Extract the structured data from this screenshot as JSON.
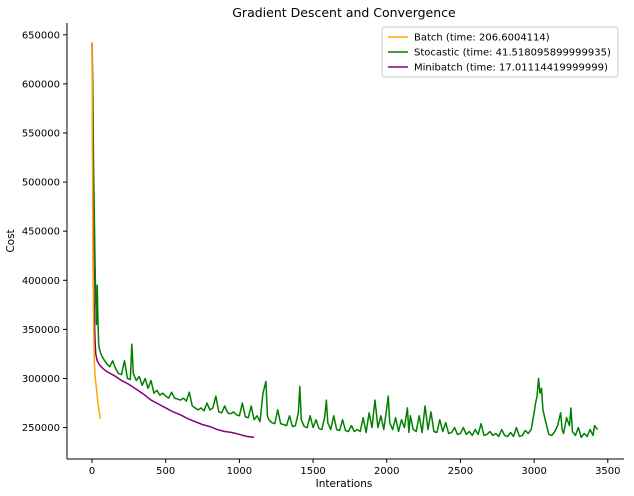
{
  "chart_data": {
    "type": "line",
    "title": "Gradient Descent and Convergence",
    "xlabel": "Interations",
    "ylabel": "Cost",
    "xlim": [
      -170,
      3610
    ],
    "ylim": [
      218000,
      662000
    ],
    "xticks": [
      0,
      500,
      1000,
      1500,
      2000,
      2500,
      3000,
      3500
    ],
    "yticks": [
      250000,
      300000,
      350000,
      400000,
      450000,
      500000,
      550000,
      600000,
      650000
    ],
    "grid": false,
    "legend_position": "top-right",
    "series": [
      {
        "name": "Batch (time: 206.6004114)",
        "color": "#ffa500",
        "points": [
          [
            0,
            642000
          ],
          [
            3,
            520000
          ],
          [
            6,
            430000
          ],
          [
            10,
            360000
          ],
          [
            15,
            320000
          ],
          [
            20,
            303000
          ],
          [
            30,
            290000
          ],
          [
            40,
            275000
          ],
          [
            50,
            265000
          ],
          [
            55,
            259000
          ]
        ]
      },
      {
        "name": "Stocastic (time: 41.518095899999935)",
        "color": "#008000",
        "points": [
          [
            0,
            642000
          ],
          [
            5,
            600000
          ],
          [
            10,
            520000
          ],
          [
            15,
            470000
          ],
          [
            20,
            420000
          ],
          [
            25,
            380000
          ],
          [
            30,
            355000
          ],
          [
            35,
            395000
          ],
          [
            40,
            360000
          ],
          [
            45,
            335000
          ],
          [
            50,
            330000
          ],
          [
            60,
            325000
          ],
          [
            70,
            322000
          ],
          [
            85,
            318000
          ],
          [
            100,
            315000
          ],
          [
            120,
            312000
          ],
          [
            140,
            318000
          ],
          [
            160,
            310000
          ],
          [
            180,
            305000
          ],
          [
            200,
            304000
          ],
          [
            220,
            318000
          ],
          [
            240,
            300000
          ],
          [
            260,
            299000
          ],
          [
            270,
            335000
          ],
          [
            280,
            305000
          ],
          [
            300,
            298000
          ],
          [
            320,
            302000
          ],
          [
            340,
            293000
          ],
          [
            360,
            300000
          ],
          [
            380,
            290000
          ],
          [
            400,
            298000
          ],
          [
            420,
            285000
          ],
          [
            440,
            288000
          ],
          [
            460,
            283000
          ],
          [
            480,
            285000
          ],
          [
            500,
            282000
          ],
          [
            520,
            280000
          ],
          [
            540,
            286000
          ],
          [
            560,
            280000
          ],
          [
            580,
            279000
          ],
          [
            600,
            278000
          ],
          [
            620,
            280000
          ],
          [
            640,
            277000
          ],
          [
            660,
            286000
          ],
          [
            680,
            272000
          ],
          [
            700,
            270000
          ],
          [
            720,
            268000
          ],
          [
            740,
            270000
          ],
          [
            760,
            267000
          ],
          [
            780,
            275000
          ],
          [
            800,
            268000
          ],
          [
            820,
            270000
          ],
          [
            840,
            282000
          ],
          [
            860,
            266000
          ],
          [
            880,
            265000
          ],
          [
            900,
            272000
          ],
          [
            920,
            265000
          ],
          [
            940,
            264000
          ],
          [
            960,
            266000
          ],
          [
            980,
            263000
          ],
          [
            1000,
            262000
          ],
          [
            1020,
            275000
          ],
          [
            1040,
            261000
          ],
          [
            1060,
            260000
          ],
          [
            1080,
            272000
          ],
          [
            1100,
            258000
          ],
          [
            1120,
            262000
          ],
          [
            1140,
            256000
          ],
          [
            1160,
            285000
          ],
          [
            1180,
            297000
          ],
          [
            1190,
            262000
          ],
          [
            1200,
            258000
          ],
          [
            1220,
            255000
          ],
          [
            1240,
            254000
          ],
          [
            1260,
            268000
          ],
          [
            1280,
            254000
          ],
          [
            1300,
            253000
          ],
          [
            1320,
            252000
          ],
          [
            1340,
            262000
          ],
          [
            1360,
            251000
          ],
          [
            1380,
            252000
          ],
          [
            1400,
            265000
          ],
          [
            1410,
            292000
          ],
          [
            1420,
            258000
          ],
          [
            1440,
            251000
          ],
          [
            1460,
            250000
          ],
          [
            1480,
            262000
          ],
          [
            1500,
            250000
          ],
          [
            1520,
            258000
          ],
          [
            1540,
            249000
          ],
          [
            1560,
            248000
          ],
          [
            1580,
            262000
          ],
          [
            1590,
            278000
          ],
          [
            1600,
            255000
          ],
          [
            1620,
            248000
          ],
          [
            1640,
            262000
          ],
          [
            1660,
            248000
          ],
          [
            1680,
            247000
          ],
          [
            1700,
            258000
          ],
          [
            1720,
            247000
          ],
          [
            1740,
            246000
          ],
          [
            1760,
            252000
          ],
          [
            1780,
            246000
          ],
          [
            1800,
            248000
          ],
          [
            1820,
            246000
          ],
          [
            1840,
            260000
          ],
          [
            1860,
            245000
          ],
          [
            1880,
            265000
          ],
          [
            1900,
            250000
          ],
          [
            1920,
            278000
          ],
          [
            1940,
            250000
          ],
          [
            1960,
            262000
          ],
          [
            1980,
            248000
          ],
          [
            2000,
            270000
          ],
          [
            2010,
            282000
          ],
          [
            2020,
            255000
          ],
          [
            2040,
            248000
          ],
          [
            2060,
            260000
          ],
          [
            2080,
            246000
          ],
          [
            2100,
            258000
          ],
          [
            2120,
            250000
          ],
          [
            2140,
            270000
          ],
          [
            2150,
            245000
          ],
          [
            2160,
            262000
          ],
          [
            2180,
            248000
          ],
          [
            2200,
            246000
          ],
          [
            2220,
            262000
          ],
          [
            2240,
            245000
          ],
          [
            2260,
            272000
          ],
          [
            2280,
            248000
          ],
          [
            2300,
            266000
          ],
          [
            2320,
            246000
          ],
          [
            2340,
            245000
          ],
          [
            2360,
            258000
          ],
          [
            2380,
            246000
          ],
          [
            2400,
            255000
          ],
          [
            2420,
            244000
          ],
          [
            2440,
            245000
          ],
          [
            2460,
            250000
          ],
          [
            2480,
            243000
          ],
          [
            2500,
            244000
          ],
          [
            2520,
            250000
          ],
          [
            2540,
            243000
          ],
          [
            2560,
            246000
          ],
          [
            2580,
            242000
          ],
          [
            2600,
            248000
          ],
          [
            2620,
            243000
          ],
          [
            2640,
            254000
          ],
          [
            2660,
            242000
          ],
          [
            2680,
            243000
          ],
          [
            2700,
            246000
          ],
          [
            2720,
            242000
          ],
          [
            2740,
            244000
          ],
          [
            2760,
            241000
          ],
          [
            2780,
            248000
          ],
          [
            2800,
            242000
          ],
          [
            2820,
            241000
          ],
          [
            2840,
            245000
          ],
          [
            2860,
            241000
          ],
          [
            2880,
            250000
          ],
          [
            2900,
            241000
          ],
          [
            2920,
            242000
          ],
          [
            2940,
            247000
          ],
          [
            2960,
            244000
          ],
          [
            2980,
            248000
          ],
          [
            3000,
            265000
          ],
          [
            3010,
            275000
          ],
          [
            3020,
            282000
          ],
          [
            3030,
            300000
          ],
          [
            3040,
            285000
          ],
          [
            3050,
            290000
          ],
          [
            3060,
            268000
          ],
          [
            3080,
            255000
          ],
          [
            3100,
            243000
          ],
          [
            3120,
            242000
          ],
          [
            3140,
            246000
          ],
          [
            3160,
            252000
          ],
          [
            3180,
            265000
          ],
          [
            3190,
            248000
          ],
          [
            3200,
            244000
          ],
          [
            3220,
            260000
          ],
          [
            3240,
            252000
          ],
          [
            3250,
            270000
          ],
          [
            3260,
            246000
          ],
          [
            3280,
            242000
          ],
          [
            3300,
            250000
          ],
          [
            3320,
            240000
          ],
          [
            3340,
            244000
          ],
          [
            3360,
            241000
          ],
          [
            3380,
            248000
          ],
          [
            3400,
            242000
          ],
          [
            3410,
            252000
          ],
          [
            3420,
            250000
          ],
          [
            3430,
            248000
          ]
        ]
      },
      {
        "name": "Minibatch (time: 17.01114419999999)",
        "color": "#800080",
        "points": [
          [
            0,
            642000
          ],
          [
            3,
            560000
          ],
          [
            6,
            480000
          ],
          [
            10,
            420000
          ],
          [
            15,
            370000
          ],
          [
            20,
            340000
          ],
          [
            25,
            325000
          ],
          [
            35,
            318000
          ],
          [
            50,
            314000
          ],
          [
            75,
            310000
          ],
          [
            100,
            307000
          ],
          [
            150,
            303000
          ],
          [
            200,
            298000
          ],
          [
            250,
            294000
          ],
          [
            300,
            289000
          ],
          [
            350,
            284000
          ],
          [
            400,
            278000
          ],
          [
            450,
            274000
          ],
          [
            500,
            270000
          ],
          [
            550,
            266000
          ],
          [
            600,
            263000
          ],
          [
            650,
            259000
          ],
          [
            700,
            256000
          ],
          [
            750,
            253000
          ],
          [
            800,
            251000
          ],
          [
            850,
            248000
          ],
          [
            900,
            246000
          ],
          [
            950,
            245000
          ],
          [
            1000,
            243000
          ],
          [
            1050,
            241000
          ],
          [
            1100,
            240000
          ]
        ]
      }
    ]
  }
}
